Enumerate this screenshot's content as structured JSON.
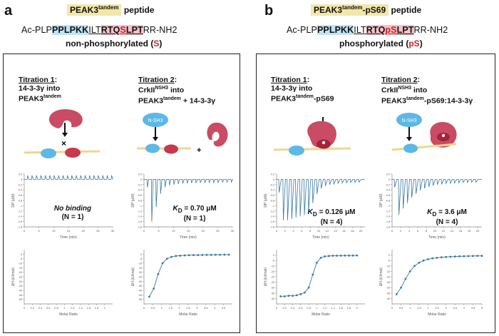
{
  "panels": [
    {
      "letter": "a",
      "peptide_name": "PEAK3",
      "peptide_sup": "tandem",
      "peptide_suffix": "",
      "peptide_word": "peptide",
      "seq": {
        "prefix": "Ac-PLP",
        "blue": "PPLPKK",
        "mid1": "ILT",
        "red1": "RTQ",
        "redS": "S",
        "red2": "LPT",
        "suffix": "RR-NH2"
      },
      "state": {
        "pre": "non-phosphorylated (",
        "mark": "S",
        "post": ")"
      },
      "titrations": [
        {
          "title_label": "Titration 1",
          "title_colon": ":",
          "line2": "14-3-3γ into",
          "line3": "PEAK3",
          "line3_sup": "tandem",
          "line3_post": "",
          "result_line1": "No binding",
          "result_line2": "(N = 1)",
          "kd_value": ""
        },
        {
          "title_label": "Titration 2",
          "title_colon": ":",
          "line2": "CrkII",
          "line2_sup": "NSH3",
          "line2_post": " into",
          "line3": "PEAK3",
          "line3_sup": "tandem",
          "line3_post": " + 14-3-3γ",
          "domain_label": "N-SH3",
          "plus": "+",
          "result_kd_prefix": "K",
          "result_kd_sub": "D",
          "result_kd_value": " = 0.70 μM",
          "result_line2": "(N = 1)"
        }
      ]
    },
    {
      "letter": "b",
      "peptide_name": "PEAK3",
      "peptide_sup": "tandem",
      "peptide_suffix": "-pS69",
      "peptide_word": "peptide",
      "seq": {
        "prefix": "Ac-PLP",
        "blue": "PPLPKK",
        "mid1": "ILT",
        "red1": "RTQ",
        "redS": "pS",
        "red2": "LPT",
        "suffix": "RR-NH2"
      },
      "state": {
        "pre": "phosphorylated (",
        "mark": "pS",
        "post": ")"
      },
      "titrations": [
        {
          "title_label": "Titration 1",
          "title_colon": ":",
          "line2": "14-3-3γ into",
          "line3": "PEAK3",
          "line3_sup": "tandem",
          "line3_post": "-pS69",
          "result_kd_prefix": "K",
          "result_kd_sub": "D",
          "result_kd_value": " = 0.126 μM",
          "result_line2": "(N = 4)"
        },
        {
          "title_label": "Titration 2",
          "title_colon": ":",
          "line2": "CrkII",
          "line2_sup": "NSH3",
          "line2_post": " into",
          "line3": "PEAK3",
          "line3_sup": "tandem",
          "line3_post": "-pS69:14-3-3γ",
          "domain_label": "N-SH3",
          "result_kd_prefix": "K",
          "result_kd_sub": "D",
          "result_kd_value": " = 3.6 μM",
          "result_line2": "(N = 4)"
        }
      ]
    }
  ],
  "chart_data": [
    {
      "type": "line",
      "panel": "a1-thermogram",
      "ylabel": "DP (μW)",
      "xlabel": "Time (min)",
      "xlim": [
        0,
        30
      ],
      "ylim": [
        -1.8,
        0.2
      ],
      "xticks": [
        0,
        5,
        10,
        15,
        20,
        25,
        30
      ],
      "yticks": [
        0.2,
        0,
        -0.2,
        -0.4,
        -0.6,
        -0.8,
        -1,
        -1.2,
        -1.4,
        -1.6,
        -1.8
      ],
      "baseline": 0,
      "injections_min": [
        1,
        2.5,
        4,
        5.5,
        7,
        8.5,
        10,
        11.5,
        13,
        14.5,
        16,
        17.5,
        19,
        20.5,
        22,
        23.5,
        25,
        26.5,
        28,
        29.5
      ],
      "peak_heights": [
        0.15,
        0.15,
        0.15,
        0.15,
        0.15,
        0.15,
        0.15,
        0.15,
        0.15,
        0.15,
        0.15,
        0.15,
        0.15,
        0.15,
        0.15,
        0.15,
        0.15,
        0.15,
        0.15,
        0.15
      ],
      "peak_sign": 1
    },
    {
      "type": "line",
      "panel": "a2-thermogram",
      "ylabel": "DP (μW)",
      "xlabel": "Time (min)",
      "xlim": [
        0,
        30
      ],
      "ylim": [
        -1.8,
        0.2
      ],
      "xticks": [
        0,
        5,
        10,
        15,
        20,
        25,
        30
      ],
      "yticks": [
        0.2,
        0,
        -0.2,
        -0.4,
        -0.6,
        -0.8,
        -1,
        -1.2,
        -1.4,
        -1.6,
        -1.8
      ],
      "baseline": 0,
      "injections_min": [
        1,
        2.5,
        4,
        5.5,
        7,
        8.5,
        10,
        11.5,
        13,
        14.5,
        16,
        17.5,
        19,
        20.5,
        22,
        23.5,
        25,
        26.5,
        28,
        29.5
      ],
      "peak_heights": [
        0.3,
        1.6,
        1.05,
        0.55,
        0.3,
        0.22,
        0.2,
        0.18,
        0.16,
        0.15,
        0.14,
        0.14,
        0.13,
        0.13,
        0.12,
        0.12,
        0.12,
        0.11,
        0.11,
        0.11
      ],
      "peak_sign": -1
    },
    {
      "type": "scatter",
      "panel": "a1-isotherm",
      "ylabel": "ΔH (kJ/mol)",
      "xlabel": "Molar Ratio",
      "xlim": [
        0,
        2.2
      ],
      "ylim": [
        -55,
        5
      ],
      "xticks": [
        0,
        0.2,
        0.4,
        0.6,
        0.8,
        1,
        1.2,
        1.4,
        1.6,
        1.8,
        2
      ],
      "yticks": [
        0,
        -5,
        -10,
        -15,
        -20,
        -25,
        -30,
        -35,
        -40,
        -45,
        -50
      ],
      "x": [],
      "y": []
    },
    {
      "type": "scatter",
      "panel": "a2-isotherm",
      "ylabel": "ΔH (kJ/mol)",
      "xlabel": "Molar Ratio",
      "xlim": [
        0,
        5
      ],
      "ylim": [
        -55,
        5
      ],
      "xticks": [
        0,
        0.5,
        1,
        1.5,
        2,
        2.5,
        3,
        3.5,
        4,
        4.5
      ],
      "yticks": [
        0,
        -5,
        -10,
        -15,
        -20,
        -25,
        -30,
        -35,
        -40,
        -45,
        -50
      ],
      "x": [
        0.3,
        0.55,
        0.8,
        1.05,
        1.3,
        1.55,
        1.8,
        2.05,
        2.3,
        2.55,
        2.8,
        3.05,
        3.3,
        3.55,
        3.8,
        4.05,
        4.3,
        4.55,
        4.8
      ],
      "y": [
        -47,
        -38,
        -22,
        -10,
        -5,
        -3,
        -2,
        -1.6,
        -1.3,
        -1.1,
        -1,
        -0.9,
        -0.8,
        -0.7,
        -0.7,
        -0.6,
        -0.6,
        -0.5,
        -0.5
      ]
    },
    {
      "type": "line",
      "panel": "b1-thermogram",
      "ylabel": "DP (μW)",
      "xlabel": "Time (min)",
      "xlim": [
        0,
        21
      ],
      "ylim": [
        -1.8,
        0.2
      ],
      "xticks": [
        0,
        2,
        4,
        6,
        8,
        10,
        12,
        14,
        16,
        18,
        20
      ],
      "yticks": [
        0.2,
        0,
        -0.2,
        -0.4,
        -0.6,
        -0.8,
        -1,
        -1.2,
        -1.4,
        -1.6,
        -1.8
      ],
      "baseline": 0,
      "injections_min": [
        0.5,
        1.5,
        2.5,
        3.5,
        4.5,
        5.5,
        6.5,
        7.5,
        8.5,
        9.5,
        10.5,
        11.5,
        12.5,
        13.5,
        14.5,
        15.5,
        16.5,
        17.5,
        18.5,
        19.5
      ],
      "peak_heights": [
        0.5,
        1.55,
        1.55,
        1.5,
        1.45,
        1.4,
        1.35,
        1.2,
        0.9,
        0.55,
        0.35,
        0.25,
        0.2,
        0.18,
        0.15,
        0.14,
        0.13,
        0.12,
        0.12,
        0.11
      ],
      "peak_sign": -1
    },
    {
      "type": "line",
      "panel": "b2-thermogram",
      "ylabel": "DP (μW)",
      "xlabel": "Time (min)",
      "xlim": [
        0,
        21
      ],
      "ylim": [
        -1.8,
        0.2
      ],
      "xticks": [
        0,
        2,
        4,
        6,
        8,
        10,
        12,
        14,
        16,
        18,
        20
      ],
      "yticks": [
        0.2,
        0,
        -0.2,
        -0.4,
        -0.6,
        -0.8,
        -1,
        -1.2,
        -1.4,
        -1.6,
        -1.8
      ],
      "baseline": 0,
      "injections_min": [
        0.5,
        1.5,
        2.5,
        3.5,
        4.5,
        5.5,
        6.5,
        7.5,
        8.5,
        9.5,
        10.5,
        11.5,
        12.5,
        13.5,
        14.5,
        15.5,
        16.5,
        17.5,
        18.5,
        19.5
      ],
      "peak_heights": [
        0.3,
        1.35,
        1.1,
        0.9,
        0.7,
        0.55,
        0.42,
        0.34,
        0.28,
        0.24,
        0.2,
        0.18,
        0.16,
        0.15,
        0.14,
        0.13,
        0.12,
        0.12,
        0.11,
        0.11
      ],
      "peak_sign": -1
    },
    {
      "type": "scatter",
      "panel": "b1-isotherm",
      "ylabel": "ΔH (kJ/mol)",
      "xlabel": "Molar Ratio",
      "xlim": [
        0,
        2.2
      ],
      "ylim": [
        -45,
        5
      ],
      "xticks": [
        0,
        0.2,
        0.4,
        0.6,
        0.8,
        1,
        1.2,
        1.4,
        1.6,
        1.8,
        2
      ],
      "yticks": [
        0,
        -5,
        -10,
        -15,
        -20,
        -25,
        -30,
        -35,
        -40
      ],
      "x": [
        0.1,
        0.2,
        0.3,
        0.4,
        0.5,
        0.6,
        0.7,
        0.8,
        0.9,
        1.0,
        1.1,
        1.2,
        1.3,
        1.4,
        1.5,
        1.6,
        1.7,
        1.8,
        1.9,
        2.0
      ],
      "y": [
        -38,
        -38,
        -37.5,
        -37.5,
        -37,
        -36,
        -34.5,
        -30,
        -18,
        -7,
        -2.5,
        -1.2,
        -0.8,
        -0.6,
        -0.5,
        -0.5,
        -0.4,
        -0.4,
        -0.4,
        -0.3
      ]
    },
    {
      "type": "scatter",
      "panel": "b2-isotherm",
      "ylabel": "ΔH (kJ/mol)",
      "xlabel": "Molar Ratio",
      "xlim": [
        0,
        5
      ],
      "ylim": [
        -45,
        5
      ],
      "xticks": [
        0,
        0.5,
        1,
        1.5,
        2,
        2.5,
        3,
        3.5,
        4,
        4.5,
        5
      ],
      "yticks": [
        0,
        -5,
        -10,
        -15,
        -20,
        -25,
        -30,
        -35,
        -40
      ],
      "x": [
        0.25,
        0.5,
        0.75,
        1.0,
        1.25,
        1.5,
        1.75,
        2.0,
        2.25,
        2.5,
        2.75,
        3.0,
        3.25,
        3.5,
        3.75,
        4.0,
        4.25,
        4.5,
        4.75,
        5.0
      ],
      "y": [
        -36,
        -30,
        -22,
        -15,
        -10,
        -7,
        -5,
        -3.8,
        -3,
        -2.5,
        -2,
        -1.7,
        -1.5,
        -1.3,
        -1.1,
        -1,
        -0.9,
        -0.8,
        -0.7,
        -0.7
      ]
    }
  ]
}
